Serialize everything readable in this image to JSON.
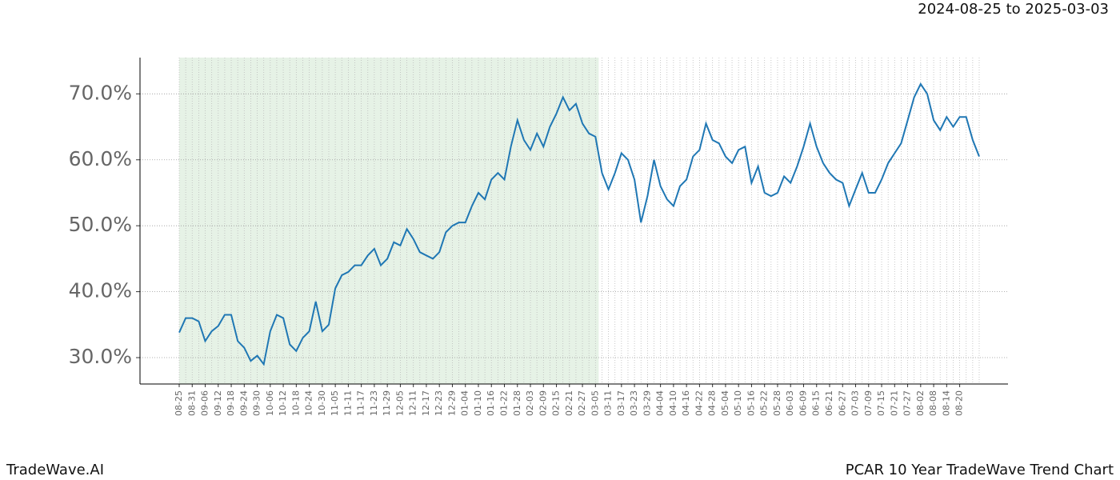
{
  "chart_data": {
    "type": "line",
    "subtitle": "2024-08-25 to 2025-03-03",
    "footer_left": "TradeWave.AI",
    "footer_right": "PCAR 10 Year TradeWave Trend Chart",
    "categories": [
      "08-25",
      null,
      "08-31",
      null,
      "09-06",
      null,
      "09-12",
      null,
      "09-18",
      null,
      "09-24",
      null,
      "09-30",
      null,
      "10-06",
      null,
      "10-12",
      null,
      "10-18",
      null,
      "10-24",
      null,
      "10-30",
      null,
      "11-05",
      null,
      "11-11",
      null,
      "11-17",
      null,
      "11-23",
      null,
      "11-29",
      null,
      "12-05",
      null,
      "12-11",
      null,
      "12-17",
      null,
      "12-23",
      null,
      "12-29",
      null,
      "01-04",
      null,
      "01-10",
      null,
      "01-16",
      null,
      "01-22",
      null,
      "01-28",
      null,
      "02-03",
      null,
      "02-09",
      null,
      "02-15",
      null,
      "02-21",
      null,
      "02-27",
      null,
      "03-05",
      null,
      "03-11",
      null,
      "03-17",
      null,
      "03-23",
      null,
      "03-29",
      null,
      "04-04",
      null,
      "04-10",
      null,
      "04-16",
      null,
      "04-22",
      null,
      "04-28",
      null,
      "05-04",
      null,
      "05-10",
      null,
      "05-16",
      null,
      "05-22",
      null,
      "05-28",
      null,
      "06-03",
      null,
      "06-09",
      null,
      "06-15",
      null,
      "06-21",
      null,
      "06-27",
      null,
      "07-03",
      null,
      "07-09",
      null,
      "07-15",
      null,
      "07-21",
      null,
      "07-27",
      null,
      "08-02",
      null,
      "08-08",
      null,
      "08-14",
      null,
      "08-20",
      null,
      null,
      null
    ],
    "series": [
      {
        "name": "PCAR",
        "color": "#1f77b4",
        "values": [
          33.8,
          36,
          36,
          35.5,
          32.5,
          34,
          34.8,
          36.5,
          36.5,
          32.5,
          31.5,
          29.5,
          30.3,
          29,
          34,
          36.5,
          36,
          32,
          31,
          33,
          34,
          38.5,
          34,
          35,
          40.5,
          42.5,
          43,
          44,
          44,
          45.5,
          46.5,
          44,
          45,
          47.5,
          47,
          49.5,
          48,
          46,
          45.5,
          45,
          46,
          49,
          50,
          50.5,
          50.5,
          53,
          55,
          54,
          57,
          58,
          57,
          62,
          66,
          63,
          61.5,
          64,
          62,
          65,
          67,
          69.5,
          67.5,
          68.5,
          65.5,
          64,
          63.5,
          58,
          55.5,
          58,
          61,
          60,
          57,
          50.5,
          54.5,
          60,
          56,
          54,
          53,
          56,
          57,
          60.5,
          61.5,
          65.5,
          63,
          62.5,
          60.5,
          59.5,
          61.5,
          62,
          56.5,
          59,
          55,
          54.5,
          55,
          57.5,
          56.5,
          59,
          62,
          65.5,
          62,
          59.5,
          58,
          57,
          56.5,
          53,
          55.5,
          58,
          55,
          55,
          57,
          59.5,
          61,
          62.5,
          66,
          69.5,
          71.5,
          70,
          66,
          64.5,
          66.5,
          65,
          66.5,
          66.5,
          63,
          60.5
        ]
      }
    ],
    "ylim": [
      26,
      75.5
    ],
    "yticks": [
      {
        "value": 30,
        "label": "30.0%"
      },
      {
        "value": 40,
        "label": "40.0%"
      },
      {
        "value": 50,
        "label": "50.0%"
      },
      {
        "value": 60,
        "label": "60.0%"
      },
      {
        "value": 70,
        "label": "70.0%"
      }
    ],
    "grid": true
  }
}
